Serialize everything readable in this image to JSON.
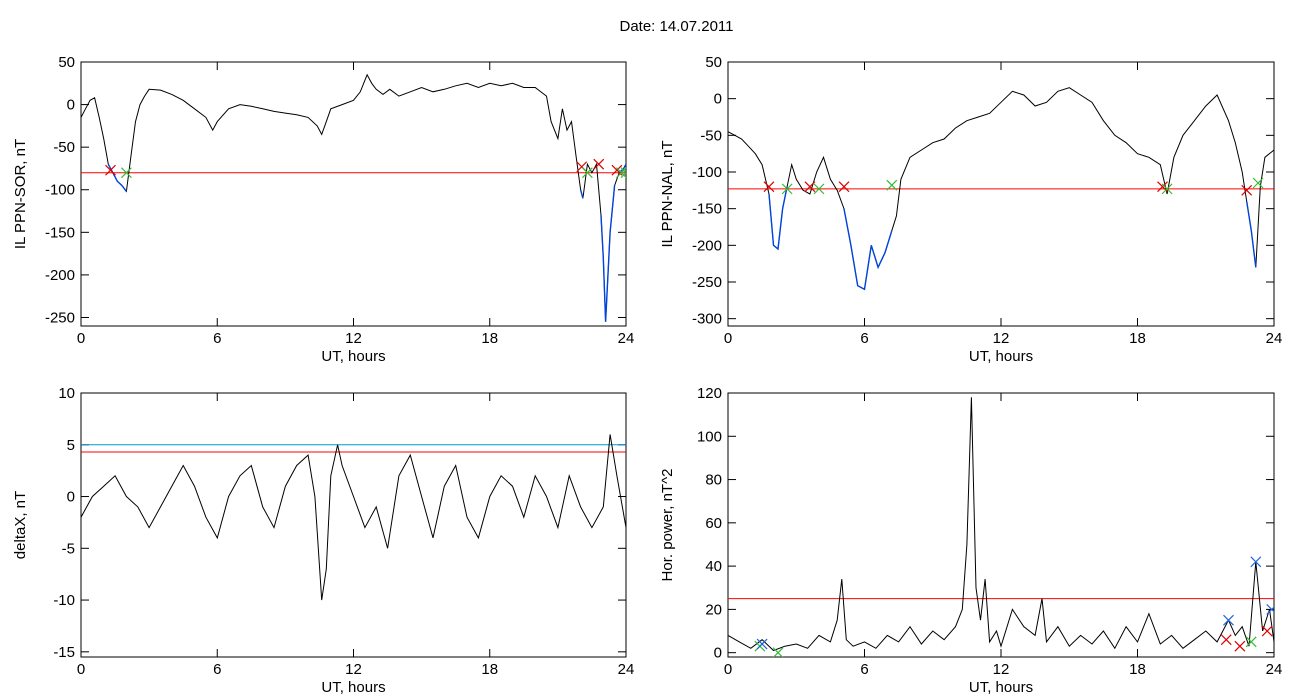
{
  "header": {
    "title": "Date:  14.07.2011"
  },
  "colors": {
    "trace": "#000000",
    "threshold": "#ff0000",
    "highlight": "#0044dd",
    "threshold2": "#0099cc",
    "start_marker": "#dd0000",
    "end_marker": "#33bb33",
    "peak_marker": "#2266dd"
  },
  "chart_data": [
    {
      "type": "line",
      "xlabel": "UT, hours",
      "ylabel": "IL PPN-SOR, nT",
      "xlim": [
        0,
        24
      ],
      "ylim": [
        -260,
        50
      ],
      "xticks": [
        "0",
        "6",
        "12",
        "18",
        "24"
      ],
      "yticks": [
        "50",
        "0",
        "-50",
        "-100",
        "-150",
        "-200",
        "-250"
      ],
      "x": [
        0,
        0.2,
        0.4,
        0.6,
        0.8,
        1.0,
        1.2,
        1.4,
        1.6,
        1.8,
        2.0,
        2.2,
        2.4,
        2.6,
        2.8,
        3.0,
        3.5,
        4.0,
        4.5,
        5.0,
        5.5,
        5.8,
        6.0,
        6.5,
        7.0,
        7.5,
        8.0,
        8.5,
        9.0,
        9.5,
        10.0,
        10.4,
        10.6,
        10.8,
        11.0,
        11.5,
        12.0,
        12.3,
        12.6,
        12.8,
        13.0,
        13.3,
        13.6,
        14.0,
        14.5,
        15.0,
        15.5,
        16.0,
        16.5,
        17.0,
        17.5,
        18.0,
        18.5,
        19.0,
        19.5,
        20.0,
        20.5,
        20.7,
        21.0,
        21.2,
        21.4,
        21.6,
        21.8,
        22.0,
        22.1,
        22.3,
        22.5,
        22.7,
        22.9,
        23.0,
        23.1,
        23.3,
        23.5,
        23.7,
        23.9,
        24.0
      ],
      "y": [
        -15,
        -5,
        5,
        8,
        -15,
        -40,
        -70,
        -80,
        -90,
        -95,
        -102,
        -60,
        -20,
        0,
        10,
        18,
        17,
        12,
        5,
        -5,
        -15,
        -30,
        -20,
        -5,
        0,
        -2,
        -5,
        -8,
        -10,
        -12,
        -15,
        -25,
        -35,
        -20,
        -5,
        0,
        5,
        15,
        35,
        25,
        18,
        12,
        18,
        10,
        15,
        20,
        15,
        18,
        22,
        25,
        20,
        25,
        22,
        25,
        20,
        20,
        10,
        -20,
        -40,
        -5,
        -30,
        -20,
        -60,
        -100,
        -110,
        -70,
        -80,
        -70,
        -130,
        -180,
        -255,
        -150,
        -95,
        -80,
        -75,
        -70
      ],
      "highlight_ranges": [
        [
          1.2,
          2.1
        ],
        [
          22.0,
          22.2
        ],
        [
          22.9,
          23.5
        ],
        [
          23.6,
          24.0
        ]
      ],
      "threshold": -80,
      "start_markers": [
        {
          "x": 1.3,
          "y": -77
        },
        {
          "x": 22.05,
          "y": -73
        },
        {
          "x": 22.8,
          "y": -70
        },
        {
          "x": 23.6,
          "y": -77
        }
      ],
      "end_markers": [
        {
          "x": 2.0,
          "y": -80
        },
        {
          "x": 22.3,
          "y": -80
        },
        {
          "x": 23.8,
          "y": -80
        },
        {
          "x": 24.0,
          "y": -80
        }
      ]
    },
    {
      "type": "line",
      "xlabel": "UT, hours",
      "ylabel": "IL PPN-NAL, nT",
      "xlim": [
        0,
        24
      ],
      "ylim": [
        -310,
        50
      ],
      "xticks": [
        "0",
        "6",
        "12",
        "18",
        "24"
      ],
      "yticks": [
        "50",
        "0",
        "-50",
        "-100",
        "-150",
        "-200",
        "-250",
        "-300"
      ],
      "x": [
        0,
        0.3,
        0.6,
        0.9,
        1.2,
        1.5,
        1.8,
        2.0,
        2.2,
        2.4,
        2.6,
        2.8,
        3.0,
        3.3,
        3.6,
        3.9,
        4.2,
        4.5,
        4.8,
        5.1,
        5.4,
        5.7,
        6.0,
        6.3,
        6.6,
        6.9,
        7.2,
        7.4,
        7.6,
        8.0,
        8.5,
        9.0,
        9.5,
        10.0,
        10.5,
        11.0,
        11.5,
        12.0,
        12.5,
        13.0,
        13.5,
        14.0,
        14.5,
        15.0,
        15.5,
        16.0,
        16.5,
        17.0,
        17.5,
        18.0,
        18.5,
        19.0,
        19.3,
        19.6,
        20.0,
        20.5,
        21.0,
        21.5,
        22.0,
        22.3,
        22.6,
        22.8,
        23.0,
        23.2,
        23.4,
        23.6,
        24.0
      ],
      "y": [
        -45,
        -50,
        -55,
        -65,
        -75,
        -90,
        -130,
        -200,
        -205,
        -150,
        -120,
        -90,
        -110,
        -125,
        -130,
        -100,
        -80,
        -110,
        -125,
        -150,
        -200,
        -255,
        -260,
        -200,
        -230,
        -210,
        -180,
        -160,
        -110,
        -80,
        -70,
        -60,
        -55,
        -40,
        -30,
        -25,
        -20,
        -5,
        10,
        5,
        -10,
        -5,
        10,
        15,
        5,
        -5,
        -30,
        -50,
        -60,
        -75,
        -80,
        -90,
        -130,
        -80,
        -50,
        -30,
        -10,
        5,
        -30,
        -60,
        -100,
        -140,
        -180,
        -230,
        -120,
        -80,
        -70
      ],
      "highlight_ranges": [
        [
          1.8,
          2.6
        ],
        [
          3.8,
          4.0
        ],
        [
          5.1,
          7.2
        ],
        [
          19.1,
          19.3
        ],
        [
          22.8,
          23.3
        ]
      ],
      "threshold": -123,
      "start_markers": [
        {
          "x": 1.8,
          "y": -120
        },
        {
          "x": 3.6,
          "y": -120
        },
        {
          "x": 5.1,
          "y": -120
        },
        {
          "x": 19.1,
          "y": -120
        },
        {
          "x": 22.8,
          "y": -125
        }
      ],
      "end_markers": [
        {
          "x": 2.6,
          "y": -123
        },
        {
          "x": 4.0,
          "y": -123
        },
        {
          "x": 7.2,
          "y": -118
        },
        {
          "x": 19.3,
          "y": -123
        },
        {
          "x": 23.3,
          "y": -115
        }
      ]
    },
    {
      "type": "line",
      "xlabel": "UT, hours",
      "ylabel": "deltaX, nT",
      "xlim": [
        0,
        24
      ],
      "ylim": [
        -15.5,
        10
      ],
      "xticks": [
        "0",
        "6",
        "12",
        "18",
        "24"
      ],
      "yticks": [
        "10",
        "5",
        "0",
        "-5",
        "-10",
        "-15"
      ],
      "x": [
        0,
        0.5,
        1.0,
        1.5,
        2.0,
        2.5,
        3.0,
        3.5,
        4.0,
        4.5,
        5.0,
        5.5,
        6.0,
        6.5,
        7.0,
        7.5,
        8.0,
        8.5,
        9.0,
        9.5,
        10.0,
        10.3,
        10.6,
        10.8,
        11.0,
        11.3,
        11.5,
        12.0,
        12.5,
        13.0,
        13.5,
        14.0,
        14.5,
        15.0,
        15.5,
        16.0,
        16.5,
        17.0,
        17.5,
        18.0,
        18.5,
        19.0,
        19.5,
        20.0,
        20.5,
        21.0,
        21.5,
        22.0,
        22.5,
        23.0,
        23.3,
        23.6,
        24.0
      ],
      "y": [
        -2,
        0,
        1,
        2,
        0,
        -1,
        -3,
        -1,
        1,
        3,
        1,
        -2,
        -4,
        0,
        2,
        3,
        -1,
        -3,
        1,
        3,
        4,
        0,
        -10,
        -7,
        2,
        5,
        3,
        0,
        -3,
        -1,
        -5,
        2,
        4,
        0,
        -4,
        1,
        3,
        -2,
        -4,
        0,
        2,
        1,
        -2,
        2,
        0,
        -3,
        2,
        -1,
        -3,
        -1,
        6,
        2,
        -3
      ],
      "thresholds": [
        5,
        4.3
      ]
    },
    {
      "type": "line",
      "xlabel": "UT, hours",
      "ylabel": "Hor. power, nT^2",
      "xlim": [
        0,
        24
      ],
      "ylim": [
        -2,
        120
      ],
      "xticks": [
        "0",
        "6",
        "12",
        "18",
        "24"
      ],
      "yticks": [
        "120",
        "100",
        "80",
        "60",
        "40",
        "20",
        "0"
      ],
      "x": [
        0,
        0.5,
        1.0,
        1.5,
        2.0,
        2.5,
        3.0,
        3.5,
        4.0,
        4.5,
        4.8,
        5.0,
        5.2,
        5.5,
        6.0,
        6.5,
        7.0,
        7.5,
        8.0,
        8.5,
        9.0,
        9.5,
        10.0,
        10.3,
        10.5,
        10.7,
        10.9,
        11.1,
        11.3,
        11.5,
        11.8,
        12.0,
        12.5,
        13.0,
        13.5,
        13.8,
        14.0,
        14.5,
        15.0,
        15.5,
        16.0,
        16.5,
        17.0,
        17.5,
        18.0,
        18.5,
        19.0,
        19.5,
        20.0,
        20.5,
        21.0,
        21.5,
        22.0,
        22.3,
        22.6,
        22.9,
        23.2,
        23.5,
        23.8,
        24.0
      ],
      "y": [
        8,
        5,
        2,
        6,
        1,
        3,
        4,
        2,
        8,
        5,
        15,
        34,
        6,
        3,
        5,
        2,
        8,
        5,
        12,
        4,
        10,
        6,
        12,
        20,
        50,
        118,
        30,
        15,
        34,
        5,
        10,
        3,
        20,
        12,
        8,
        25,
        5,
        12,
        3,
        8,
        4,
        10,
        2,
        12,
        5,
        18,
        4,
        8,
        2,
        6,
        10,
        5,
        15,
        8,
        12,
        3,
        42,
        10,
        20,
        5
      ],
      "threshold": 25,
      "start_markers": [
        {
          "x": 21.9,
          "y": 6
        },
        {
          "x": 22.5,
          "y": 3
        },
        {
          "x": 23.7,
          "y": 10
        }
      ],
      "end_markers": [
        {
          "x": 1.4,
          "y": 3
        },
        {
          "x": 2.2,
          "y": 0
        },
        {
          "x": 23.0,
          "y": 5
        }
      ],
      "peak_markers": [
        {
          "x": 1.5,
          "y": 4
        },
        {
          "x": 22.0,
          "y": 15
        },
        {
          "x": 23.2,
          "y": 42
        },
        {
          "x": 23.9,
          "y": 20
        }
      ]
    }
  ]
}
